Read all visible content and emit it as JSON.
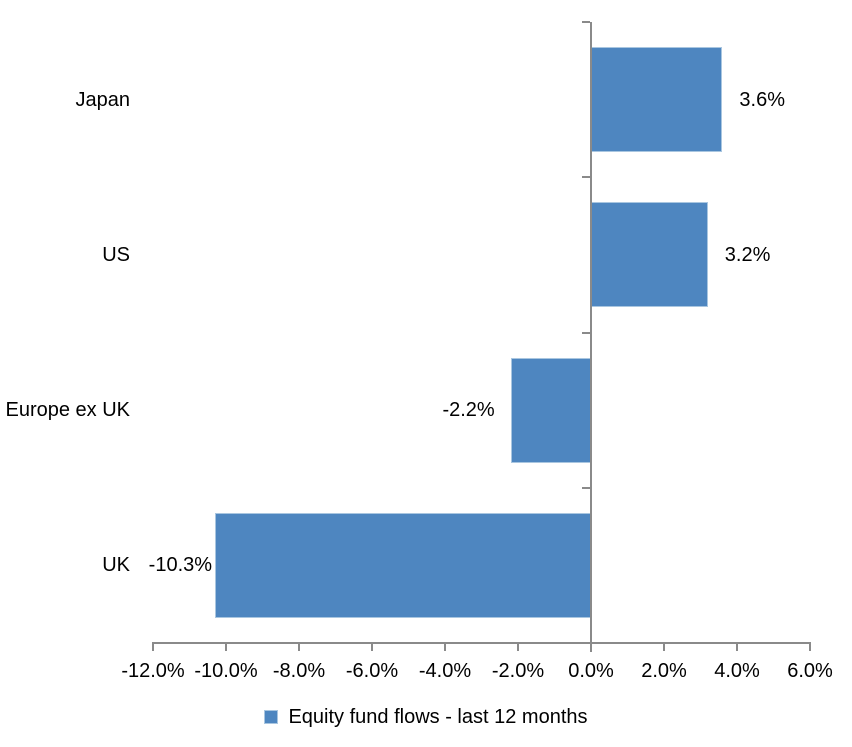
{
  "chart_data": {
    "type": "bar",
    "orientation": "horizontal",
    "title": "",
    "categories": [
      "Japan",
      "US",
      "Europe ex UK",
      "UK"
    ],
    "series": [
      {
        "name": "Equity fund flows - last 12 months",
        "values": [
          3.6,
          3.2,
          -2.2,
          -10.3
        ],
        "data_labels": [
          "3.6%",
          "3.2%",
          "-2.2%",
          "-10.3%"
        ]
      }
    ],
    "legend": "Equity fund flows - last 12 months",
    "legend_position": "bottom",
    "xlabel": "",
    "ylabel": "",
    "xlim": [
      -12,
      6
    ],
    "x_tick_step": 2,
    "x_tick_labels": [
      "-12.0%",
      "-10.0%",
      "-8.0%",
      "-6.0%",
      "-4.0%",
      "-2.0%",
      "0.0%",
      "2.0%",
      "4.0%",
      "6.0%"
    ],
    "grid": false,
    "data_label_position": "outside-end",
    "label_gaps": [
      17,
      17,
      16,
      3
    ],
    "colors": {
      "bar_fill": "#4E86C0",
      "bar_border": "#A9C6E0",
      "axis": "#8A8A8A",
      "text": "#000000",
      "background": "#FFFFFF"
    }
  }
}
